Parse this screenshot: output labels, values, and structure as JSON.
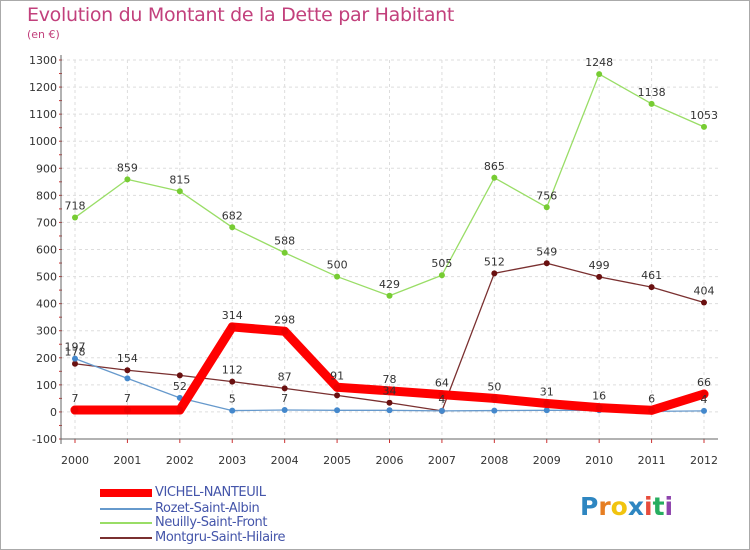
{
  "chart_data": {
    "type": "line",
    "title": "Evolution du Montant de la Dette par Habitant",
    "unit": "(en €)",
    "x": [
      "2000",
      "2001",
      "2002",
      "2003",
      "2004",
      "2005",
      "2006",
      "2007",
      "2008",
      "2009",
      "2010",
      "2011",
      "2012"
    ],
    "ylim": [
      -100,
      1300
    ],
    "yticks": [
      -100,
      0,
      100,
      200,
      300,
      400,
      500,
      600,
      700,
      800,
      900,
      1000,
      1100,
      1200,
      1300
    ],
    "grid": true,
    "series": [
      {
        "name": "Montgru-Saint-Hilaire",
        "color": "#7a3030",
        "marker": "#6a1010",
        "values": [
          178,
          154,
          135,
          112,
          87,
          61,
          34,
          4,
          512,
          549,
          499,
          461,
          404
        ],
        "labels": [
          "178",
          "154",
          "",
          "112",
          "87",
          "",
          "34",
          "4",
          "512",
          "549",
          "499",
          "461",
          "404"
        ]
      },
      {
        "name": "Neuilly-Saint-Front",
        "color": "#99dd66",
        "marker": "#77cc33",
        "values": [
          718,
          859,
          815,
          682,
          588,
          500,
          429,
          505,
          865,
          756,
          1248,
          1138,
          1053
        ],
        "labels": [
          "718",
          "859",
          "815",
          "682",
          "588",
          "500",
          "429",
          "505",
          "865",
          "756",
          "1248",
          "1138",
          "1053"
        ]
      },
      {
        "name": "Rozet-Saint-Albin",
        "color": "#6699cc",
        "marker": "#4488cc",
        "values": [
          197,
          124,
          52,
          5,
          7,
          6,
          6,
          4,
          5,
          6,
          6,
          2,
          4
        ],
        "labels": [
          "197",
          "",
          "52",
          "5",
          "7",
          "",
          "",
          "",
          "",
          "",
          "",
          "",
          "4"
        ]
      },
      {
        "name": "VICHEL-NANTEUIL",
        "color": "#ff0000",
        "marker": "#ee0000",
        "thick": true,
        "values": [
          7,
          7,
          7,
          314,
          298,
          91,
          78,
          64,
          50,
          31,
          16,
          6,
          66
        ],
        "labels": [
          "7",
          "7",
          "",
          "314",
          "298",
          "91",
          "78",
          "64",
          "50",
          "31",
          "16",
          "6",
          "66"
        ]
      }
    ]
  },
  "legend": [
    {
      "name": "VICHEL-NANTEUIL",
      "color": "#ff0000"
    },
    {
      "name": "Rozet-Saint-Albin",
      "color": "#6699cc"
    },
    {
      "name": "Neuilly-Saint-Front",
      "color": "#99dd66"
    },
    {
      "name": "Montgru-Saint-Hilaire",
      "color": "#7a3030"
    }
  ],
  "brand": {
    "letters": [
      "P",
      "r",
      "o",
      "x",
      "i",
      "t",
      "i"
    ],
    "colors": [
      "#2e86c1",
      "#e67e22",
      "#f1c40f",
      "#2e86c1",
      "#e74c3c",
      "#27ae60",
      "#8e44ad"
    ]
  }
}
